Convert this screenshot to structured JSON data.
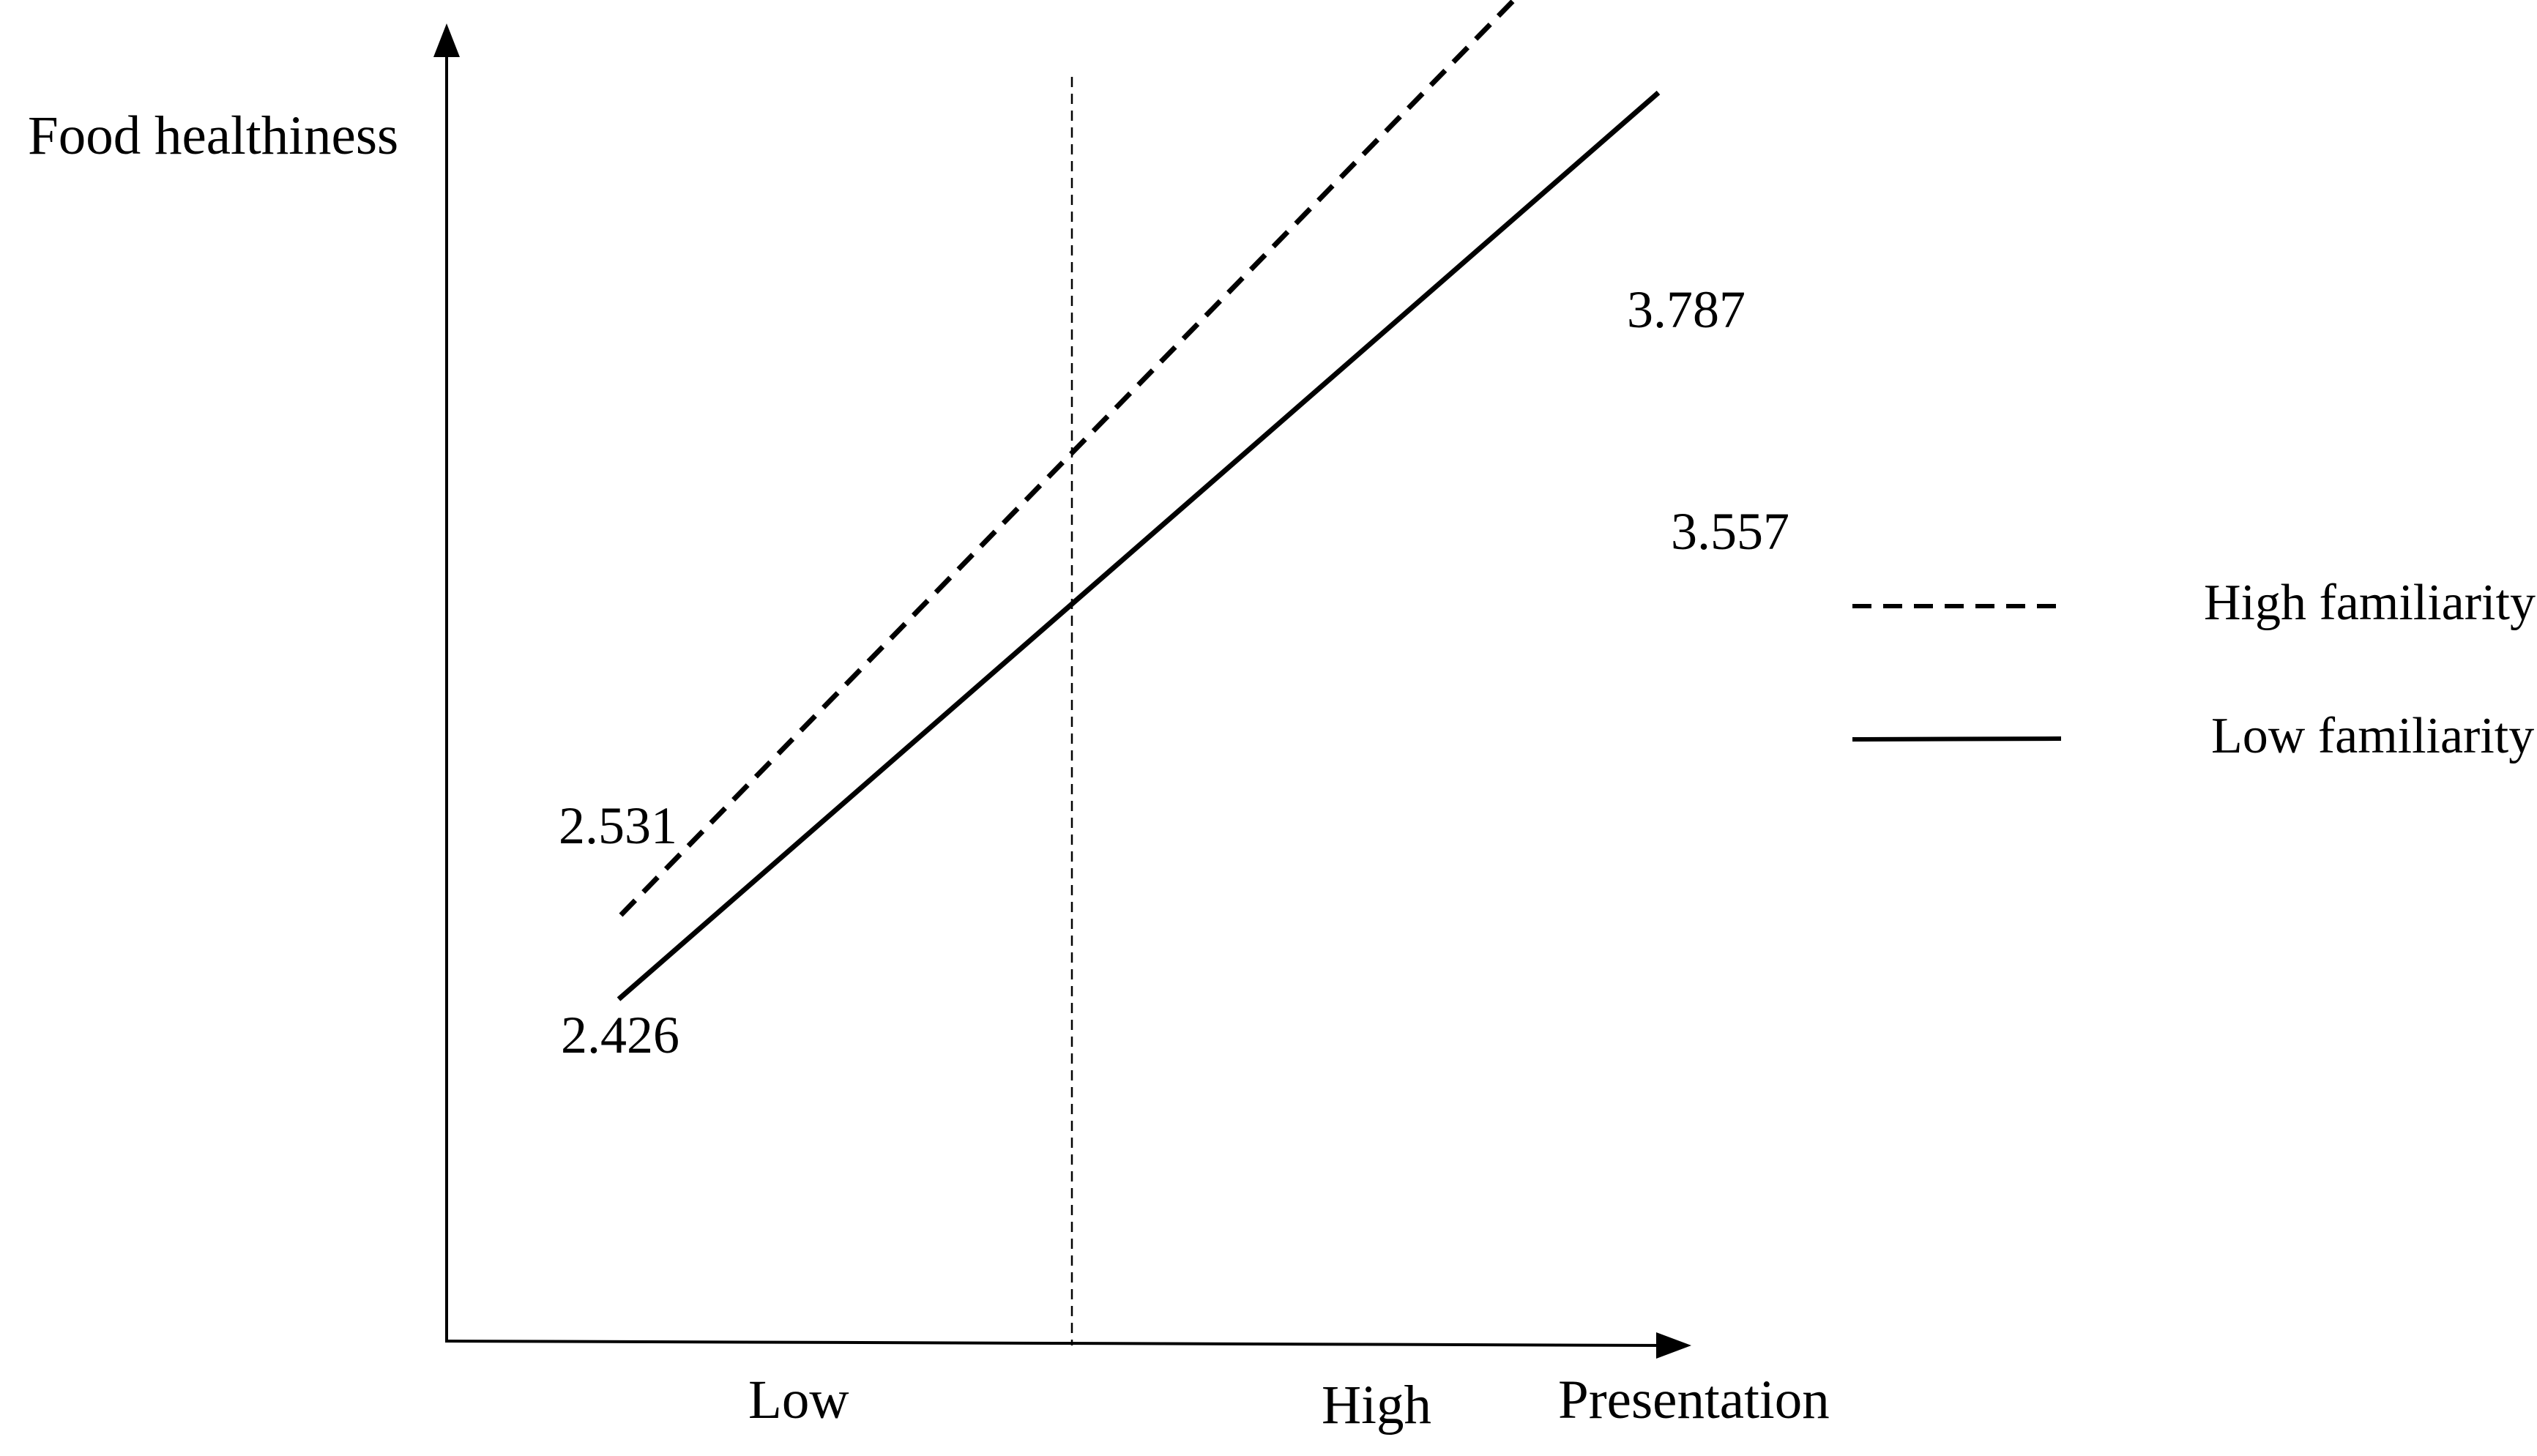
{
  "chart_data": {
    "type": "line",
    "title": "",
    "ylabel": "Food healthiness",
    "xlabel": "Presentation",
    "categories": [
      "Low",
      "High"
    ],
    "series": [
      {
        "name": "High familiarity",
        "values": [
          2.531,
          3.787
        ],
        "line_style": "dashed",
        "color": "#000000"
      },
      {
        "name": "Low familiarity",
        "values": [
          2.426,
          3.557
        ],
        "line_style": "solid",
        "color": "#000000"
      }
    ],
    "data_labels": [
      "2.531",
      "3.787",
      "2.426",
      "3.557"
    ],
    "reference_line": "vertical dashed line",
    "grid": false,
    "legend_position": "right"
  }
}
